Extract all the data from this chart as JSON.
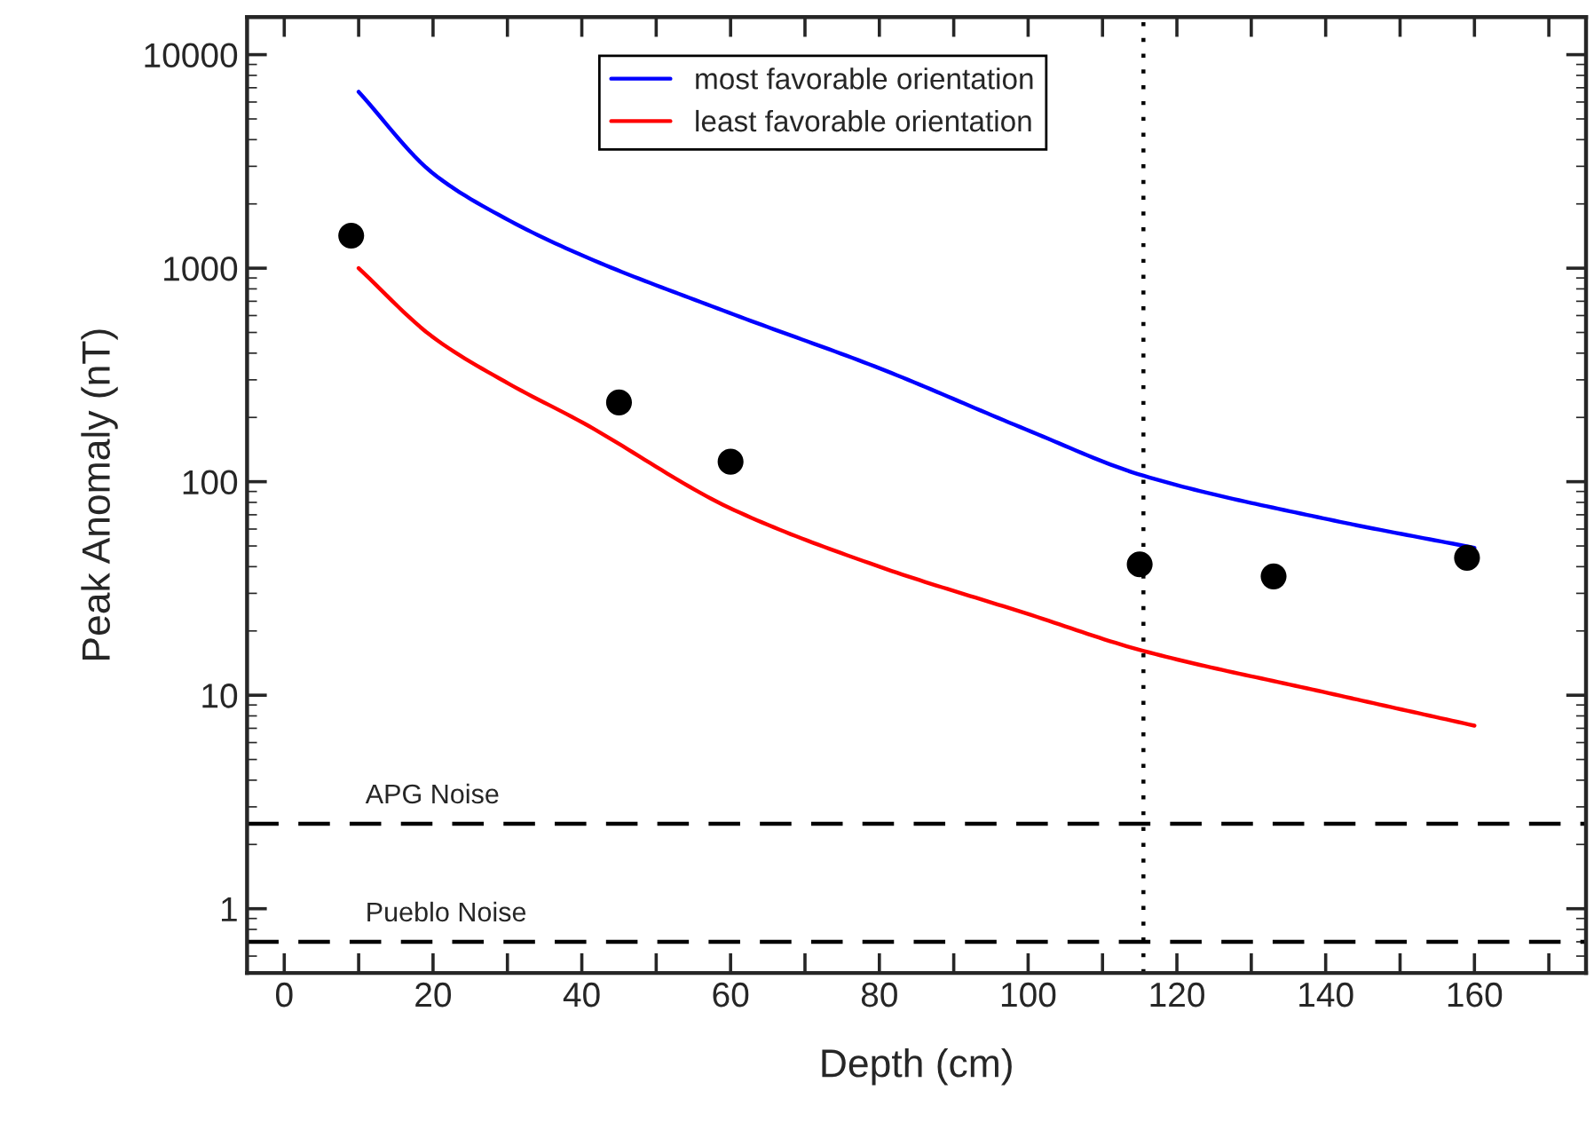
{
  "chart_data": {
    "type": "line",
    "xlabel": "Depth (cm)",
    "ylabel": "Peak Anomaly (nT)",
    "log": "y",
    "xlim": [
      -5,
      175
    ],
    "ylim": [
      0.5,
      15000
    ],
    "xticks": [
      0,
      {
        "value": 10,
        "label": null
      },
      20,
      {
        "value": 30,
        "label": null
      },
      40,
      {
        "value": 50,
        "label": null
      },
      60,
      {
        "value": 70,
        "label": null
      },
      80,
      {
        "value": 90,
        "label": null
      },
      100,
      {
        "value": 110,
        "label": null
      },
      120,
      {
        "value": 130,
        "label": null
      },
      140,
      {
        "value": 150,
        "label": null
      },
      160,
      {
        "value": 170,
        "label": null
      }
    ],
    "yticks": [
      1,
      10,
      100,
      1000,
      10000
    ],
    "grid": false,
    "legend": "top",
    "series": [
      {
        "name": "most favorable orientation",
        "color": "#0000ff",
        "marker": "none",
        "x": [
          10,
          20,
          30,
          40,
          60,
          80,
          100,
          115,
          140,
          160
        ],
        "values": [
          6700,
          2780,
          1690,
          1150,
          615,
          340,
          174,
          108,
          67,
          49
        ]
      },
      {
        "name": "least favorable orientation",
        "color": "#ff0000",
        "marker": "none",
        "x": [
          10,
          20,
          30,
          40,
          60,
          80,
          100,
          115,
          140,
          160
        ],
        "values": [
          1000,
          475,
          290,
          190,
          75,
          40,
          24,
          16.3,
          10.3,
          7.2
        ]
      },
      {
        "color": "#000000",
        "type": "scatter",
        "marker": "circle",
        "x": [
          9,
          45,
          60,
          115,
          133,
          159
        ],
        "values": [
          1420,
          235,
          124,
          41,
          36,
          44
        ]
      }
    ],
    "ref_lines": [
      {
        "axis": "y",
        "value": 2.5,
        "label": "APG Noise",
        "color": "#000000",
        "line_style": "dashed"
      },
      {
        "axis": "y",
        "value": 0.7,
        "label": "Pueblo Noise",
        "color": "#000000",
        "line_style": "dashed"
      },
      {
        "axis": "x",
        "value": 115.5,
        "color": "#000000",
        "line_style": "dotted"
      }
    ]
  }
}
